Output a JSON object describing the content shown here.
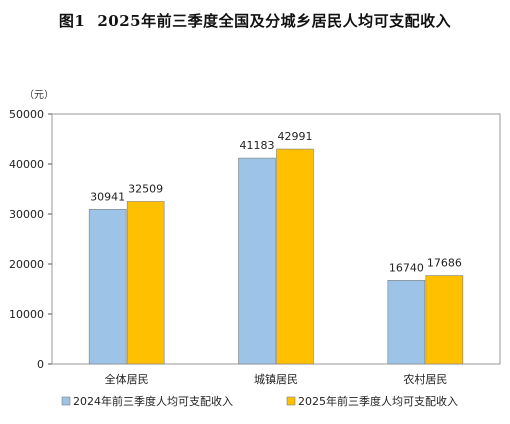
{
  "title": {
    "figure_no": "图1",
    "text": "2025年前三季度全国及分城乡居民人均可支配收入"
  },
  "unit_label": "（元）",
  "colors": {
    "series_2024": "#9DC3E6",
    "series_2025": "#FFC000",
    "axis": "#555555",
    "plot_border": "#999999"
  },
  "chart_data": {
    "type": "bar",
    "title": "2025年前三季度全国及分城乡居民人均可支配收入",
    "xlabel": "",
    "ylabel": "（元）",
    "ylim": [
      0,
      50000
    ],
    "yticks": [
      0,
      10000,
      20000,
      30000,
      40000,
      50000
    ],
    "grid": false,
    "legend_position": "bottom",
    "categories": [
      "全体居民",
      "城镇居民",
      "农村居民"
    ],
    "series": [
      {
        "name": "2024年前三季度人均可支配收入",
        "values": [
          30941,
          41183,
          16740
        ],
        "color": "#9DC3E6"
      },
      {
        "name": "2025年前三季度人均可支配收入",
        "values": [
          32509,
          42991,
          17686
        ],
        "color": "#FFC000"
      }
    ]
  }
}
